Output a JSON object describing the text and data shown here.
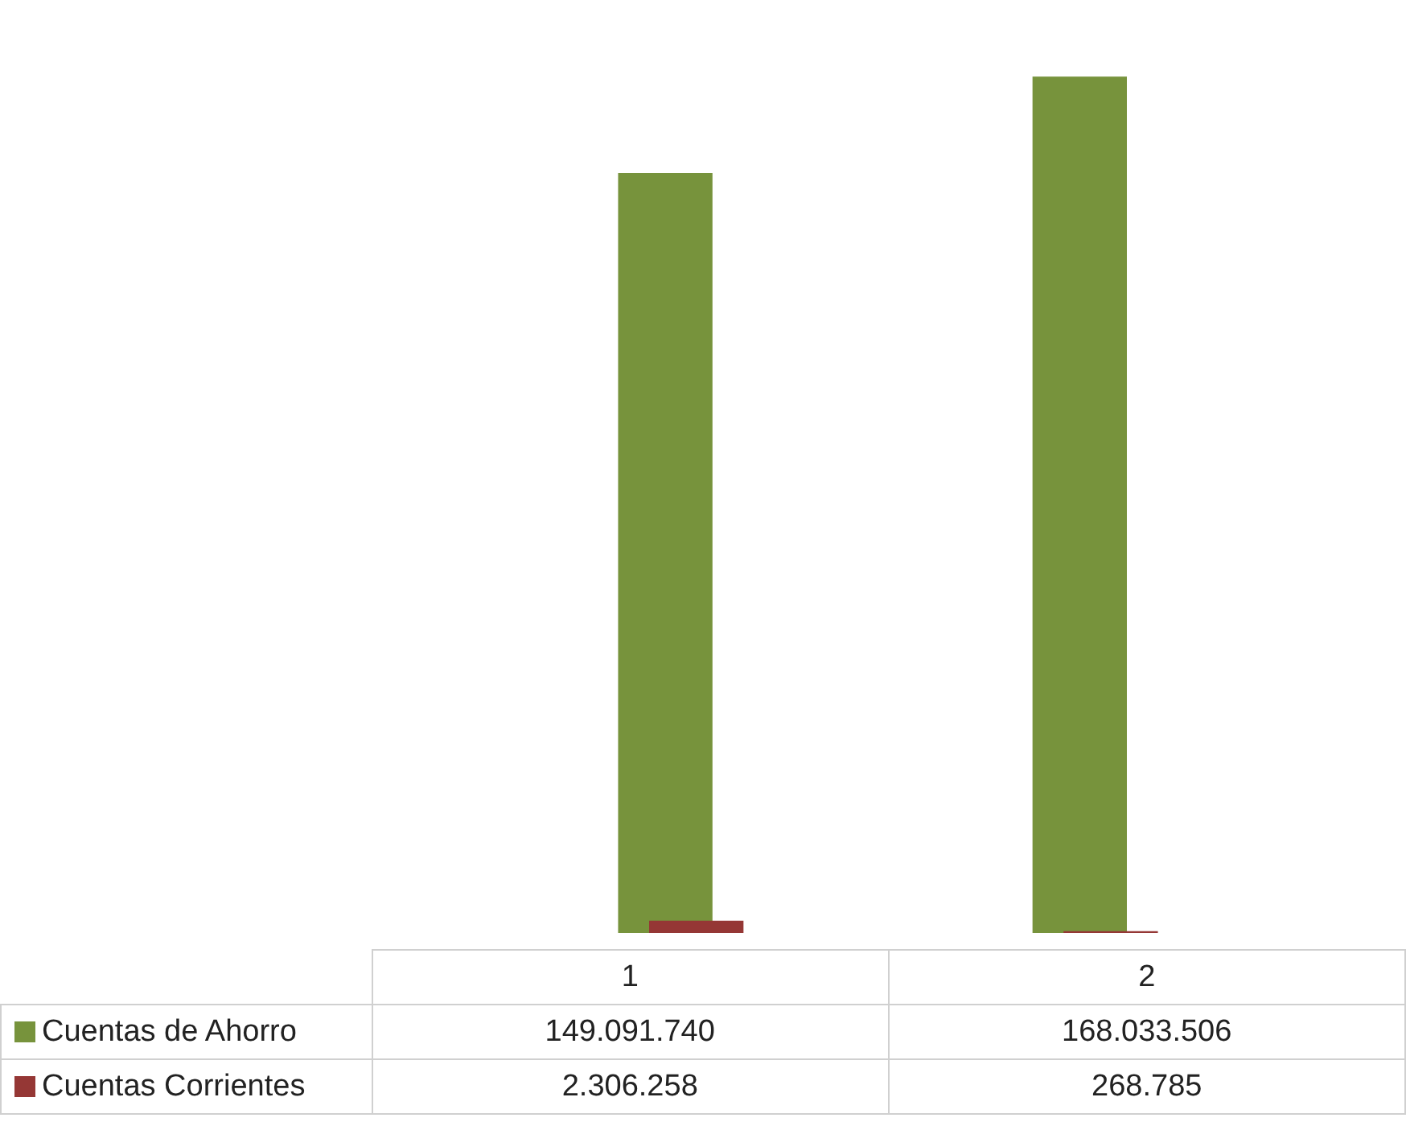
{
  "chart_data": {
    "type": "bar",
    "categories": [
      "1",
      "2"
    ],
    "series": [
      {
        "name": "Cuentas de Ahorro",
        "color": "#77933c",
        "values": [
          149091740,
          168033506
        ],
        "value_labels": [
          "149.091.740",
          "168.033.506"
        ]
      },
      {
        "name": "Cuentas Corrientes",
        "color": "#953735",
        "values": [
          2306258,
          268785
        ],
        "value_labels": [
          "2.306.258",
          "268.785"
        ]
      }
    ],
    "legend": "bottom"
  }
}
